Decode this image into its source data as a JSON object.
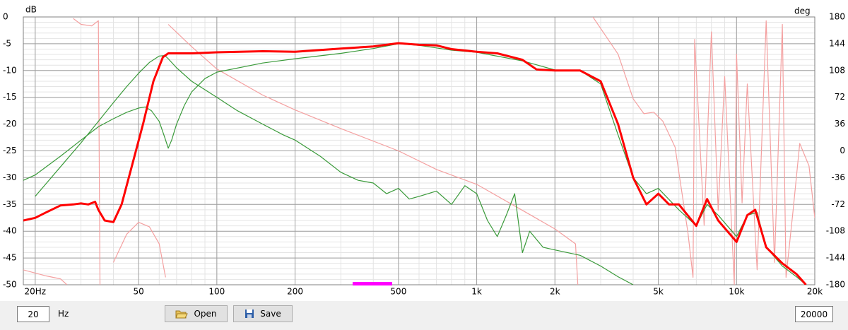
{
  "chart_data": {
    "type": "line",
    "y_label": "dB",
    "y2_label": "deg",
    "xscale": "log",
    "grid": true,
    "xlim": [
      18,
      20000
    ],
    "xticks": [
      {
        "value": 20,
        "label": "20Hz"
      },
      50,
      100,
      200,
      500,
      {
        "value": 1000,
        "label": "1k"
      },
      {
        "value": 2000,
        "label": "2k"
      },
      {
        "value": 5000,
        "label": "5k"
      },
      {
        "value": 10000,
        "label": "10k"
      },
      {
        "value": 20000,
        "label": "20k"
      }
    ],
    "ylim": [
      -50,
      0
    ],
    "yticks": [
      0,
      -5,
      -10,
      -15,
      -20,
      -25,
      -30,
      -35,
      -40,
      -45,
      -50
    ],
    "y2lim": [
      -180,
      180
    ],
    "y2ticks": [
      180,
      144,
      108,
      72,
      36,
      0,
      -36,
      -72,
      -108,
      -144,
      -180
    ],
    "series": [
      {
        "color": "#f4a0a0",
        "axis": "y2",
        "x": [
          18,
          22,
          25,
          26.5,
          26.6,
          28,
          30,
          33,
          35,
          35.5,
          35.6,
          40,
          45,
          50,
          55,
          60,
          63.5,
          63.6,
          65,
          80,
          100,
          150,
          200,
          300,
          500,
          700,
          1000,
          1500,
          2000,
          2400,
          2450,
          2460,
          2800,
          3500,
          4000,
          4400,
          4800,
          5200,
          5800,
          6500,
          6800,
          6900,
          7500,
          8000,
          8500,
          9000,
          9800,
          10000,
          10500,
          11000,
          12000,
          13000,
          14000,
          15000,
          15500,
          16500,
          17500,
          19000,
          20000
        ],
        "values": [
          -160,
          -168,
          -172,
          -180,
          null,
          178,
          170,
          168,
          175,
          -180,
          null,
          -150,
          -112,
          -96,
          -102,
          -125,
          -170,
          null,
          170,
          140,
          110,
          75,
          55,
          30,
          0,
          -25,
          -45,
          -80,
          -105,
          -125,
          -180,
          null,
          180,
          130,
          70,
          50,
          52,
          40,
          5,
          -110,
          -170,
          150,
          -100,
          160,
          -80,
          100,
          -180,
          130,
          -70,
          90,
          -160,
          175,
          -150,
          170,
          -170,
          -80,
          10,
          -20,
          -90
        ]
      },
      {
        "color": "#3a9a3a",
        "axis": "y",
        "x": [
          18,
          20,
          25,
          30,
          35,
          40,
          45,
          50,
          53,
          56,
          60,
          63,
          65,
          67,
          70,
          75,
          80,
          90,
          100,
          150,
          200,
          300,
          400,
          500,
          600,
          800,
          1000,
          1500,
          2000,
          2500,
          3000,
          3500,
          4000,
          4500,
          5000,
          6000,
          7000,
          7700,
          8500,
          10000,
          11000,
          12000,
          13000,
          15000,
          17000,
          18500
        ],
        "values": [
          -30.5,
          -29.5,
          -26,
          -23,
          -20.5,
          -19,
          -17.8,
          -17,
          -16.8,
          -17.5,
          -19.5,
          -22.5,
          -24.5,
          -23,
          -20,
          -16.5,
          -14,
          -11.5,
          -10.3,
          -8.6,
          -7.8,
          -6.8,
          -5.9,
          -5.0,
          -5.3,
          -6.2,
          -6.6,
          -8.2,
          -9.9,
          -10.0,
          -12.5,
          -22,
          -30,
          -33,
          -32,
          -36,
          -39,
          -35,
          -37,
          -41,
          -37,
          -36.5,
          -43,
          -46.5,
          -48.5,
          -50
        ]
      },
      {
        "color": "#3a9a3a",
        "axis": "y",
        "x": [
          20,
          25,
          30,
          35,
          40,
          45,
          50,
          55,
          60,
          63,
          65,
          70,
          80,
          100,
          120,
          150,
          180,
          200,
          250,
          300,
          350,
          400,
          450,
          500,
          550,
          600,
          700,
          800,
          900,
          1000,
          1100,
          1200,
          1300,
          1400,
          1500,
          1600,
          1800,
          2000,
          2500,
          3000,
          3500,
          4000
        ],
        "values": [
          -33.5,
          -28,
          -23.5,
          -19.5,
          -16,
          -13,
          -10.5,
          -8.5,
          -7.3,
          -7.2,
          -7.8,
          -9.5,
          -12,
          -15,
          -17.5,
          -20,
          -22,
          -23,
          -26,
          -29,
          -30.5,
          -31,
          -33,
          -32,
          -34,
          -33.5,
          -32.5,
          -35,
          -31.5,
          -33,
          -38,
          -41,
          -37,
          -33,
          -44,
          -40,
          -43,
          -43.5,
          -44.5,
          -46.5,
          -48.5,
          -50
        ]
      },
      {
        "color": "#ff0000",
        "axis": "y",
        "width": 3,
        "x": [
          18,
          20,
          22,
          25,
          28,
          30,
          32,
          34,
          35,
          37,
          40,
          43,
          47,
          52,
          57,
          62,
          65,
          80,
          100,
          150,
          200,
          300,
          400,
          500,
          600,
          700,
          800,
          1000,
          1200,
          1500,
          1700,
          2000,
          2500,
          3000,
          3500,
          4000,
          4500,
          5000,
          5500,
          6000,
          7000,
          7700,
          8500,
          10000,
          11000,
          11800,
          13000,
          15000,
          17000,
          18500
        ],
        "values": [
          -38,
          -37.5,
          -36.5,
          -35.2,
          -35,
          -34.8,
          -35,
          -34.5,
          -36,
          -38,
          -38.3,
          -35,
          -28,
          -20,
          -12,
          -7.5,
          -6.8,
          -6.8,
          -6.6,
          -6.4,
          -6.5,
          -5.9,
          -5.5,
          -4.9,
          -5.2,
          -5.3,
          -6.0,
          -6.5,
          -6.8,
          -8,
          -9.8,
          -10,
          -10,
          -12,
          -20,
          -30,
          -35,
          -33,
          -35,
          -35,
          -39,
          -34,
          -38,
          -42,
          -37,
          -36,
          -43,
          -46,
          -48,
          -50
        ]
      }
    ]
  },
  "ui": {
    "from_value": "20",
    "from_unit": "Hz",
    "open": "Open",
    "save": "Save",
    "to_value": "20000"
  }
}
